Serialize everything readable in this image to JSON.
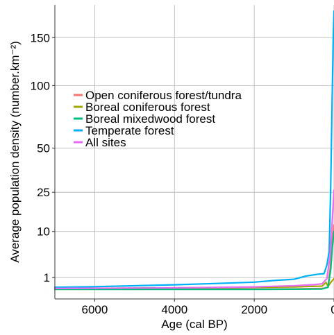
{
  "chart_data": {
    "type": "line",
    "xlabel": "Age (cal BP)",
    "ylabel": "Average population density (number.km⁻²)",
    "xlim": [
      7000,
      0
    ],
    "x_reversed": true,
    "y_scale": "sqrt",
    "ylim": [
      0,
      190
    ],
    "x_ticks": [
      6000,
      4000,
      2000,
      0
    ],
    "y_ticks": [
      1,
      10,
      25,
      50,
      100,
      150
    ],
    "grid": true,
    "legend_position": "upper-left inside plot",
    "series": [
      {
        "name": "Open coniferous forest/tundra",
        "color": "#F8766D",
        "points": [
          [
            7000,
            0.22
          ],
          [
            6000,
            0.22
          ],
          [
            5000,
            0.22
          ],
          [
            4000,
            0.22
          ],
          [
            3000,
            0.22
          ],
          [
            2000,
            0.22
          ],
          [
            1000,
            0.22
          ],
          [
            300,
            0.24
          ],
          [
            150,
            0.3
          ],
          [
            80,
            3
          ],
          [
            40,
            8
          ],
          [
            0,
            12
          ]
        ]
      },
      {
        "name": "Boreal coniferous forest",
        "color": "#A3A500",
        "points": [
          [
            7000,
            0.24
          ],
          [
            6000,
            0.25
          ],
          [
            5000,
            0.26
          ],
          [
            4000,
            0.27
          ],
          [
            3000,
            0.28
          ],
          [
            2000,
            0.3
          ],
          [
            1000,
            0.32
          ],
          [
            500,
            0.35
          ],
          [
            300,
            0.36
          ],
          [
            200,
            0.6
          ],
          [
            150,
            0.35
          ],
          [
            80,
            0.6
          ],
          [
            0,
            0.9
          ]
        ]
      },
      {
        "name": "Boreal mixedwood forest",
        "color": "#00BF7D",
        "points": [
          [
            7000,
            0.2
          ],
          [
            6000,
            0.2
          ],
          [
            5000,
            0.2
          ],
          [
            4000,
            0.2
          ],
          [
            3000,
            0.2
          ],
          [
            2000,
            0.2
          ],
          [
            1000,
            0.21
          ],
          [
            300,
            0.22
          ],
          [
            150,
            0.3
          ],
          [
            80,
            2
          ],
          [
            40,
            6
          ],
          [
            0,
            10
          ]
        ]
      },
      {
        "name": "Temperate forest",
        "color": "#00B0F6",
        "points": [
          [
            7000,
            0.3
          ],
          [
            6000,
            0.33
          ],
          [
            5000,
            0.38
          ],
          [
            4000,
            0.44
          ],
          [
            3000,
            0.52
          ],
          [
            2000,
            0.62
          ],
          [
            1500,
            0.75
          ],
          [
            1000,
            0.85
          ],
          [
            700,
            1.15
          ],
          [
            400,
            1.35
          ],
          [
            250,
            1.4
          ],
          [
            180,
            2.5
          ],
          [
            120,
            5
          ],
          [
            80,
            30
          ],
          [
            50,
            80
          ],
          [
            20,
            150
          ],
          [
            0,
            182
          ]
        ]
      },
      {
        "name": "All sites",
        "color": "#E76BF3",
        "points": [
          [
            7000,
            0.24
          ],
          [
            6000,
            0.25
          ],
          [
            5000,
            0.26
          ],
          [
            4000,
            0.27
          ],
          [
            3000,
            0.29
          ],
          [
            2000,
            0.32
          ],
          [
            1000,
            0.38
          ],
          [
            500,
            0.45
          ],
          [
            300,
            0.5
          ],
          [
            180,
            0.9
          ],
          [
            100,
            4
          ],
          [
            50,
            12
          ],
          [
            0,
            26
          ]
        ]
      }
    ]
  }
}
